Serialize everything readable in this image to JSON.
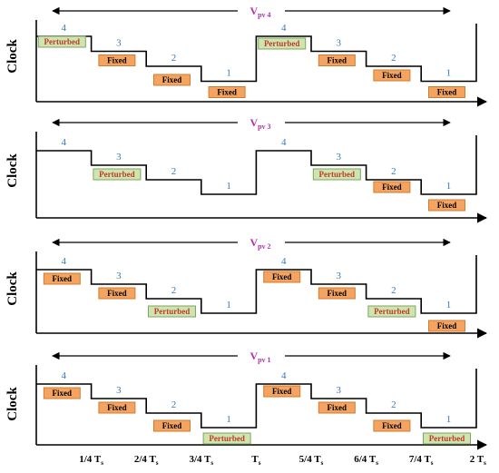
{
  "colors": {
    "fixed_fill": "#f4a460",
    "fixed_stroke": "#d07c30",
    "fixed_text": "#000000",
    "perturbed_fill": "#cfe5b0",
    "perturbed_stroke": "#7fa55f",
    "perturbed_text": "#c0392b",
    "vpv": "#b030b0",
    "level_number": "#3878b8"
  },
  "y_label": "Clock",
  "x_ticks": [
    {
      "main": "1/4 T",
      "sub": "s"
    },
    {
      "main": "2/4 T",
      "sub": "s"
    },
    {
      "main": "3/4 T",
      "sub": "s"
    },
    {
      "main": "T",
      "sub": "s"
    },
    {
      "main": "5/4 T",
      "sub": "s"
    },
    {
      "main": "6/4 T",
      "sub": "s"
    },
    {
      "main": "7/4 T",
      "sub": "s"
    },
    {
      "main": "2 T",
      "sub": "s"
    }
  ],
  "panels": [
    {
      "vpv_main": "V",
      "vpv_sub": "pv 4",
      "levels": [
        "4",
        "3",
        "2",
        "1",
        "4",
        "3",
        "2",
        "1"
      ],
      "boxes": [
        "Perturbed",
        "Fixed",
        "Fixed",
        "Fixed",
        "Perturbed",
        "Fixed",
        "Fixed",
        "Fixed"
      ]
    },
    {
      "vpv_main": "V",
      "vpv_sub": "pv 3",
      "levels": [
        "4",
        "3",
        "2",
        "1",
        "4",
        "3",
        "2",
        "1"
      ],
      "boxes": [
        null,
        "Perturbed",
        null,
        null,
        null,
        "Perturbed",
        "Fixed",
        "Fixed"
      ]
    },
    {
      "vpv_main": "V",
      "vpv_sub": "pv 2",
      "levels": [
        "4",
        "3",
        "2",
        "1",
        "4",
        "3",
        "2",
        "1"
      ],
      "boxes": [
        "Fixed",
        "Fixed",
        "Perturbed",
        null,
        "Fixed",
        "Fixed",
        "Perturbed",
        "Fixed"
      ]
    },
    {
      "vpv_main": "V",
      "vpv_sub": "pv 1",
      "levels": [
        "4",
        "3",
        "2",
        "1",
        "4",
        "3",
        "2",
        "1"
      ],
      "boxes": [
        "Fixed",
        "Fixed",
        "Fixed",
        "Perturbed",
        "Fixed",
        "Fixed",
        "Fixed",
        "Perturbed"
      ]
    }
  ]
}
